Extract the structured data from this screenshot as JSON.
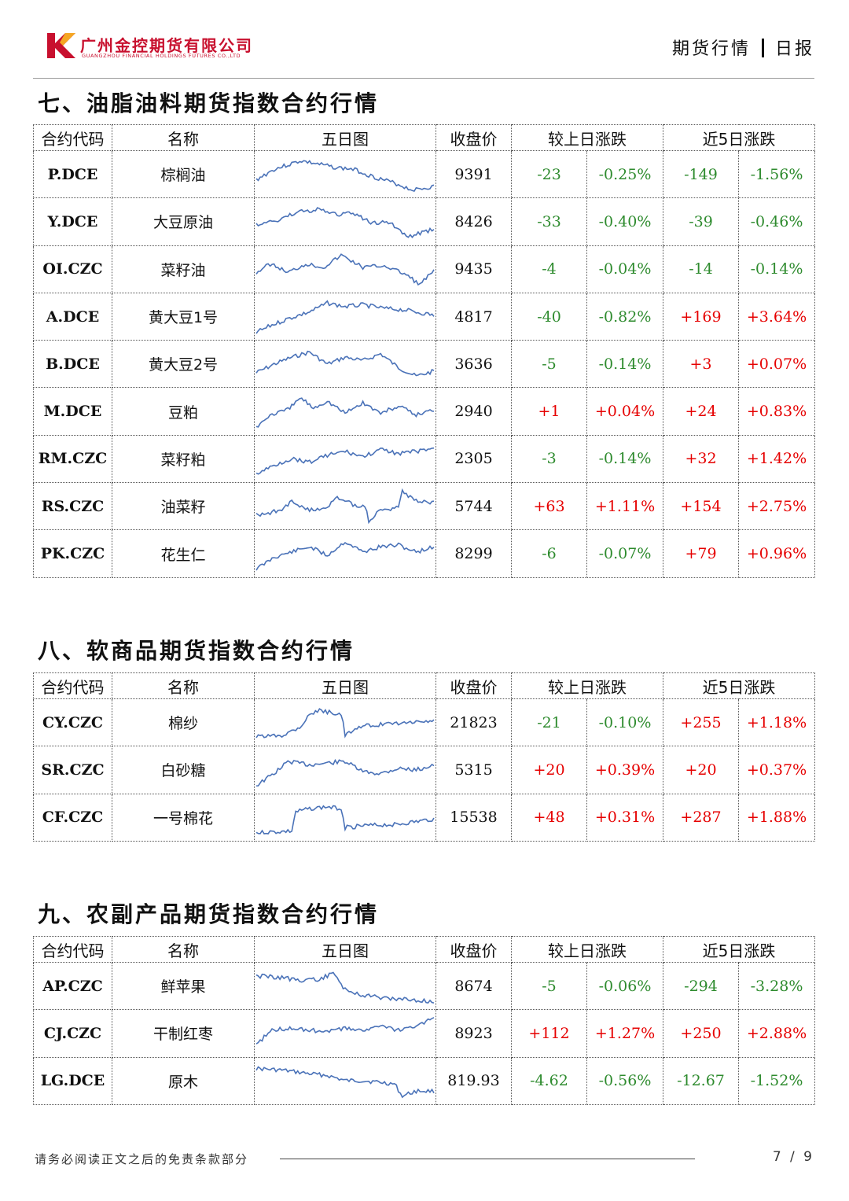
{
  "header": {
    "company_cn": "广州金控期货有限公司",
    "company_en": "GUANGZHOU FINANCIAL HOLDINGS FUTURES CO.,LTD",
    "report_type": "期货行情",
    "report_period": "日报"
  },
  "columns": {
    "code": "合约代码",
    "name": "名称",
    "chart": "五日图",
    "close": "收盘价",
    "day_change": "较上日涨跌",
    "five_day_change": "近5日涨跌"
  },
  "sections": [
    {
      "title": "七、油脂油料期货指数合约行情",
      "rows": [
        {
          "code": "P.DCE",
          "name": "棕榈油",
          "close": "9391",
          "d_abs": "-23",
          "d_pct": "-0.25%",
          "w_abs": "-149",
          "w_pct": "-1.56%"
        },
        {
          "code": "Y.DCE",
          "name": "大豆原油",
          "close": "8426",
          "d_abs": "-33",
          "d_pct": "-0.40%",
          "w_abs": "-39",
          "w_pct": "-0.46%"
        },
        {
          "code": "OI.CZC",
          "name": "菜籽油",
          "close": "9435",
          "d_abs": "-4",
          "d_pct": "-0.04%",
          "w_abs": "-14",
          "w_pct": "-0.14%"
        },
        {
          "code": "A.DCE",
          "name": "黄大豆1号",
          "close": "4817",
          "d_abs": "-40",
          "d_pct": "-0.82%",
          "w_abs": "+169",
          "w_pct": "+3.64%"
        },
        {
          "code": "B.DCE",
          "name": "黄大豆2号",
          "close": "3636",
          "d_abs": "-5",
          "d_pct": "-0.14%",
          "w_abs": "+3",
          "w_pct": "+0.07%"
        },
        {
          "code": "M.DCE",
          "name": "豆粕",
          "close": "2940",
          "d_abs": "+1",
          "d_pct": "+0.04%",
          "w_abs": "+24",
          "w_pct": "+0.83%"
        },
        {
          "code": "RM.CZC",
          "name": "菜籽粕",
          "close": "2305",
          "d_abs": "-3",
          "d_pct": "-0.14%",
          "w_abs": "+32",
          "w_pct": "+1.42%"
        },
        {
          "code": "RS.CZC",
          "name": "油菜籽",
          "close": "5744",
          "d_abs": "+63",
          "d_pct": "+1.11%",
          "w_abs": "+154",
          "w_pct": "+2.75%"
        },
        {
          "code": "PK.CZC",
          "name": "花生仁",
          "close": "8299",
          "d_abs": "-6",
          "d_pct": "-0.07%",
          "w_abs": "+79",
          "w_pct": "+0.96%"
        }
      ]
    },
    {
      "title": "八、软商品期货指数合约行情",
      "rows": [
        {
          "code": "CY.CZC",
          "name": "棉纱",
          "close": "21823",
          "d_abs": "-21",
          "d_pct": "-0.10%",
          "w_abs": "+255",
          "w_pct": "+1.18%"
        },
        {
          "code": "SR.CZC",
          "name": "白砂糖",
          "close": "5315",
          "d_abs": "+20",
          "d_pct": "+0.39%",
          "w_abs": "+20",
          "w_pct": "+0.37%"
        },
        {
          "code": "CF.CZC",
          "name": "一号棉花",
          "close": "15538",
          "d_abs": "+48",
          "d_pct": "+0.31%",
          "w_abs": "+287",
          "w_pct": "+1.88%"
        }
      ]
    },
    {
      "title": "九、农副产品期货指数合约行情",
      "rows": [
        {
          "code": "AP.CZC",
          "name": "鲜苹果",
          "close": "8674",
          "d_abs": "-5",
          "d_pct": "-0.06%",
          "w_abs": "-294",
          "w_pct": "-3.28%"
        },
        {
          "code": "CJ.CZC",
          "name": "干制红枣",
          "close": "8923",
          "d_abs": "+112",
          "d_pct": "+1.27%",
          "w_abs": "+250",
          "w_pct": "+2.88%"
        },
        {
          "code": "LG.DCE",
          "name": "原木",
          "close": "819.93",
          "d_abs": "-4.62",
          "d_pct": "-0.56%",
          "w_abs": "-12.67",
          "w_pct": "-1.52%"
        }
      ]
    }
  ],
  "footer": {
    "disclaimer": "请务必阅读正文之后的免责条款部分",
    "page": "7 / 9"
  },
  "colors": {
    "up": "#e60000",
    "down": "#2e8b2e",
    "sparkline": "#4a72b8",
    "brand": "#c8102e"
  }
}
